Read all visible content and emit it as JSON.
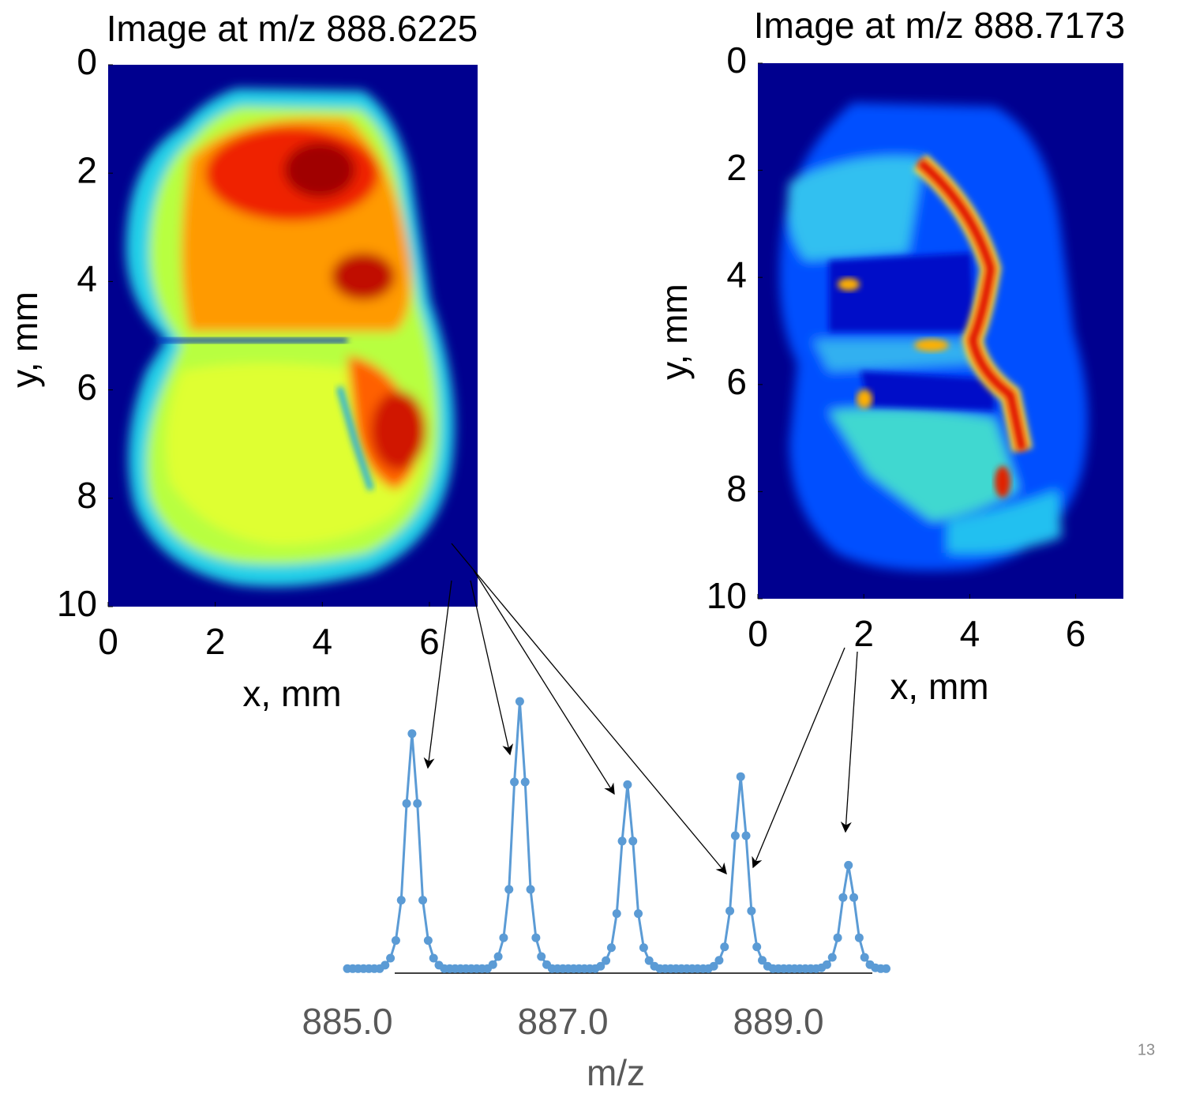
{
  "page_number": "13",
  "chart_data": [
    {
      "type": "heatmap",
      "title": "Image at m/z 888.6225",
      "xlabel": "x, mm",
      "ylabel": "y, mm",
      "xlim": [
        0,
        6.9
      ],
      "ylim": [
        0,
        10
      ],
      "yreverse": true,
      "xticks": [
        0,
        2,
        4,
        6
      ],
      "yticks": [
        0,
        2,
        4,
        6,
        8,
        10
      ]
    },
    {
      "type": "heatmap",
      "title": "Image at m/z 888.7173",
      "xlabel": "x, mm",
      "ylabel": "y, mm",
      "xlim": [
        0,
        6.9
      ],
      "ylim": [
        0,
        10
      ],
      "yreverse": true,
      "xticks": [
        0,
        2,
        4,
        6
      ],
      "yticks": [
        0,
        2,
        4,
        6,
        8,
        10
      ]
    },
    {
      "type": "line",
      "xlabel": "m/z",
      "color": "#5b9bd5",
      "xlim": [
        885,
        890
      ],
      "xticks": [
        {
          "value": 885,
          "label": "885.0"
        },
        {
          "value": 887,
          "label": "887.0"
        },
        {
          "value": 889,
          "label": "889.0"
        }
      ],
      "x": [
        885.0,
        885.05,
        885.1,
        885.15,
        885.2,
        885.25,
        885.3,
        885.35,
        885.4,
        885.45,
        885.5,
        885.55,
        885.6,
        885.65,
        885.7,
        885.75,
        885.8,
        885.85,
        885.9,
        885.95,
        886.0,
        886.05,
        886.1,
        886.15,
        886.2,
        886.25,
        886.3,
        886.35,
        886.4,
        886.45,
        886.5,
        886.55,
        886.6,
        886.65,
        886.7,
        886.75,
        886.8,
        886.85,
        886.9,
        886.95,
        887.0,
        887.05,
        887.1,
        887.15,
        887.2,
        887.25,
        887.3,
        887.35,
        887.4,
        887.45,
        887.5,
        887.55,
        887.6,
        887.65,
        887.7,
        887.75,
        887.8,
        887.85,
        887.9,
        887.95,
        888.0,
        888.05,
        888.1,
        888.15,
        888.2,
        888.25,
        888.3,
        888.35,
        888.4,
        888.45,
        888.5,
        888.55,
        888.6,
        888.65,
        888.7,
        888.75,
        888.8,
        888.85,
        888.9,
        888.95,
        889.0,
        889.05,
        889.1,
        889.15,
        889.2,
        889.25,
        889.3,
        889.35,
        889.4,
        889.45,
        889.5,
        889.55,
        889.6,
        889.65,
        889.7,
        889.75,
        889.8,
        889.85,
        889.9,
        889.95,
        890.0
      ],
      "values": [
        0.5,
        0.5,
        0.5,
        0.5,
        0.5,
        0.5,
        0.5,
        1.8,
        4.4,
        11,
        26,
        62,
        88,
        62,
        26,
        11,
        4.4,
        1.8,
        0.5,
        0.5,
        0.5,
        0.5,
        0.5,
        0.5,
        0.5,
        0.5,
        0.5,
        2,
        5,
        12,
        30,
        70,
        100,
        70,
        30,
        12,
        5,
        2,
        0.5,
        0.5,
        0.5,
        0.5,
        0.5,
        0.5,
        0.5,
        0.5,
        0.5,
        1.4,
        3.5,
        8.3,
        21,
        48,
        69,
        48,
        21,
        8.3,
        3.5,
        1.4,
        0.5,
        0.5,
        0.5,
        0.5,
        0.5,
        0.5,
        0.5,
        0.5,
        0.5,
        0.5,
        1.4,
        3.6,
        8.6,
        22,
        50,
        72,
        50,
        22,
        8.6,
        3.6,
        1.4,
        0.5,
        0.5,
        0.5,
        0.5,
        0.5,
        0.5,
        0.5,
        0.5,
        0.5,
        0.8,
        2,
        4.7,
        12,
        27,
        39,
        27,
        12,
        4.7,
        2,
        0.8,
        0.5,
        0.5
      ]
    }
  ]
}
